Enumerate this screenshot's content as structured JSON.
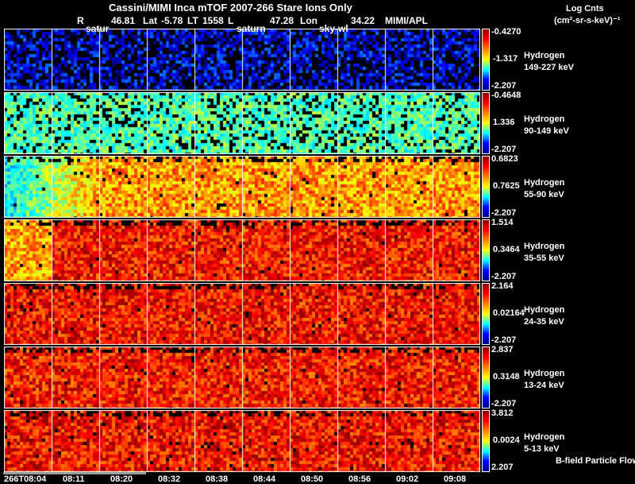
{
  "header": {
    "title": "Cassini/MIMI Inca mTOF  2007-266   Stare   Ions Only",
    "r_label": "R",
    "r_value": "46.81",
    "lat_label": "Lat",
    "lat_value": "-5.78",
    "lt_label": "LT",
    "lt_value": "1558",
    "l_label": "L",
    "l_value": "47.28",
    "lon_label": "Lon",
    "lon_value": "34.22",
    "source": "MIMI/APL"
  },
  "units": {
    "line1": "Log Cnts",
    "line2": "(cm²-sr-s-keV)⁻¹"
  },
  "annotations": {
    "a1": "satur",
    "a2": "saturn",
    "a3": "sky-wl",
    "footer": "B-field Particle Flow"
  },
  "chart_data": {
    "type": "heatmap",
    "title": "Cassini/MIMI Inca mTOF  2007-266   Stare   Ions Only",
    "x_ticks": [
      "266T08:04",
      "08:11",
      "08:20",
      "08:32",
      "08:38",
      "08:44",
      "08:50",
      "08:56",
      "09:02",
      "09:08"
    ],
    "rows": [
      {
        "species": "Hydrogen",
        "energy": "149-227 keV",
        "cmax": "-0.4270",
        "cmid": "-1.317",
        "cmin": "-2.207",
        "level": 0.12,
        "fill": 0.6
      },
      {
        "species": "Hydrogen",
        "energy": "90-149 keV",
        "cmax": "-0.4648",
        "cmid": "1.336",
        "cmin": "-2.207",
        "level": 0.45,
        "fill": 0.8
      },
      {
        "species": "Hydrogen",
        "energy": "55-90 keV",
        "cmax": "0.6823",
        "cmid": "0.7625",
        "cmin": "-2.207",
        "level": 0.72,
        "fill": 0.97
      },
      {
        "species": "Hydrogen",
        "energy": "35-55 keV",
        "cmax": "1.514",
        "cmid": "0.3464",
        "cmin": "-2.207",
        "level": 0.86,
        "fill": 0.98
      },
      {
        "species": "Hydrogen",
        "energy": "24-35 keV",
        "cmax": "2.164",
        "cmid": "0.02164",
        "cmin": "-2.207",
        "level": 0.87,
        "fill": 0.98
      },
      {
        "species": "Hydrogen",
        "energy": "13-24 keV",
        "cmax": "2.837",
        "cmid": "0.3148",
        "cmin": "-2.207",
        "level": 0.86,
        "fill": 0.98
      },
      {
        "species": "Hydrogen",
        "energy": "5-13 keV",
        "cmax": "3.812",
        "cmid": "0.0024",
        "cmin": "2.207",
        "level": 0.87,
        "fill": 0.98
      }
    ]
  }
}
